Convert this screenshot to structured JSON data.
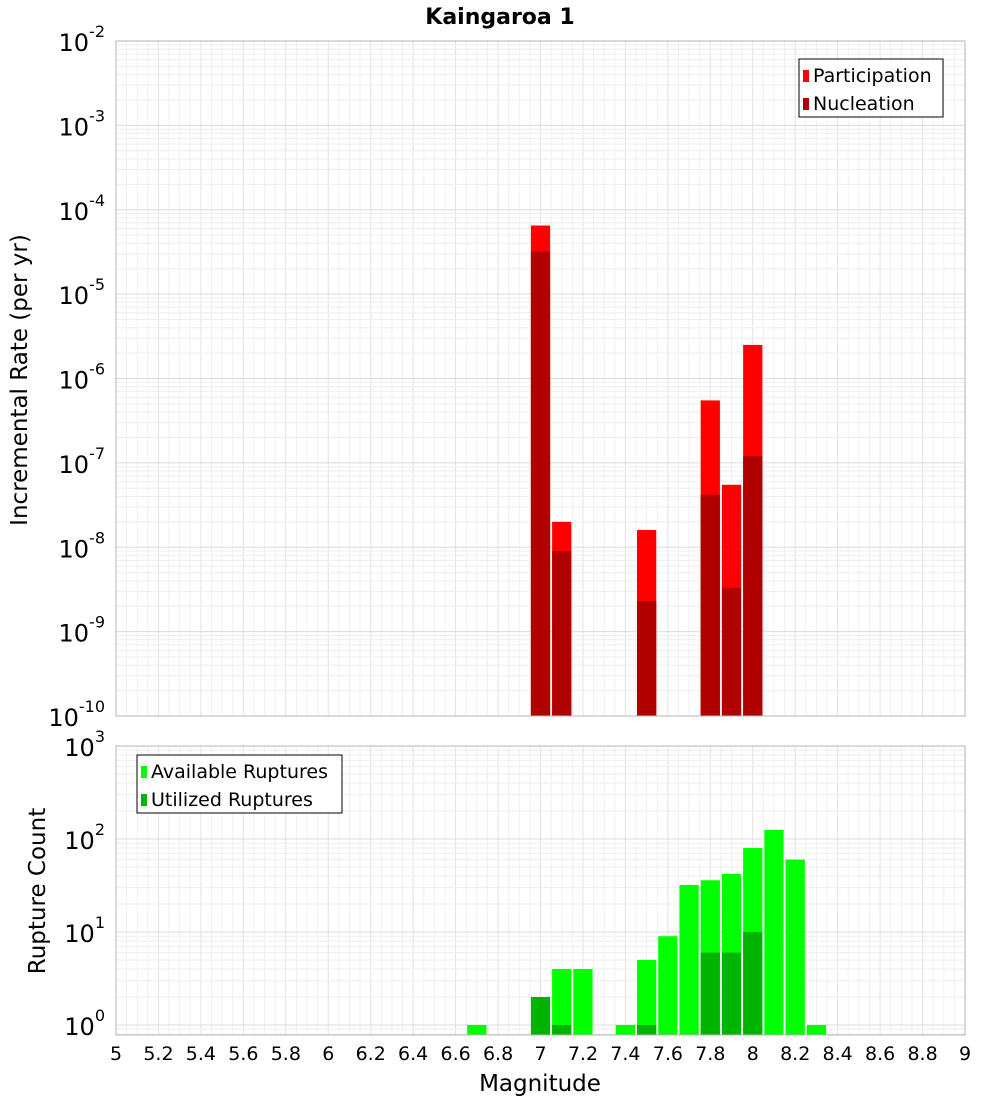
{
  "chart_data": [
    {
      "type": "bar",
      "title": "Kaingaroa 1",
      "xlabel": "",
      "ylabel": "Incremental Rate (per yr)",
      "yscale": "log",
      "xlim": [
        5,
        9
      ],
      "ylim": [
        1e-10,
        0.01
      ],
      "y_tick_exponents": [
        "-10",
        "-9",
        "-8",
        "-7",
        "-6",
        "-5",
        "-4",
        "-3",
        "-2"
      ],
      "grid": true,
      "legend_position": "top-right",
      "series": [
        {
          "name": "Participation",
          "color": "#ff0000",
          "x": [
            7.0,
            7.1,
            7.5,
            7.8,
            7.9,
            8.0
          ],
          "values": [
            6.5e-05,
            2e-08,
            1.6e-08,
            5.5e-07,
            5.5e-08,
            2.5e-06
          ]
        },
        {
          "name": "Nucleation",
          "color": "#b00000",
          "x": [
            7.0,
            7.1,
            7.5,
            7.8,
            7.9,
            8.0
          ],
          "values": [
            3.2e-05,
            9e-09,
            2.3e-09,
            4.2e-08,
            3.3e-09,
            1.2e-07
          ]
        }
      ]
    },
    {
      "type": "bar",
      "title": "",
      "xlabel": "Magnitude",
      "ylabel": "Rupture Count",
      "yscale": "log",
      "xlim": [
        5,
        9
      ],
      "ylim": [
        0.78,
        1000
      ],
      "y_tick_exponents": [
        "0",
        "1",
        "2",
        "3"
      ],
      "x_ticks": [
        "5",
        "5.2",
        "5.4",
        "5.6",
        "5.8",
        "6",
        "6.2",
        "6.4",
        "6.6",
        "6.8",
        "7",
        "7.2",
        "7.4",
        "7.6",
        "7.8",
        "8",
        "8.2",
        "8.4",
        "8.6",
        "8.8",
        "9"
      ],
      "grid": true,
      "legend_position": "top-left",
      "series": [
        {
          "name": "Available Ruptures",
          "color": "#00ff00",
          "x": [
            6.7,
            7.1,
            7.2,
            7.4,
            7.5,
            7.6,
            7.7,
            7.8,
            7.9,
            8.0,
            8.1,
            8.2,
            8.3
          ],
          "values": [
            1,
            4,
            4,
            1,
            5,
            9,
            32,
            36,
            42,
            80,
            125,
            60,
            1
          ]
        },
        {
          "name": "Utilized Ruptures",
          "color": "#00b400",
          "x": [
            7.0,
            7.1,
            7.5,
            7.8,
            7.9,
            8.0
          ],
          "values": [
            2,
            1,
            1,
            6,
            6,
            10
          ]
        }
      ]
    }
  ]
}
